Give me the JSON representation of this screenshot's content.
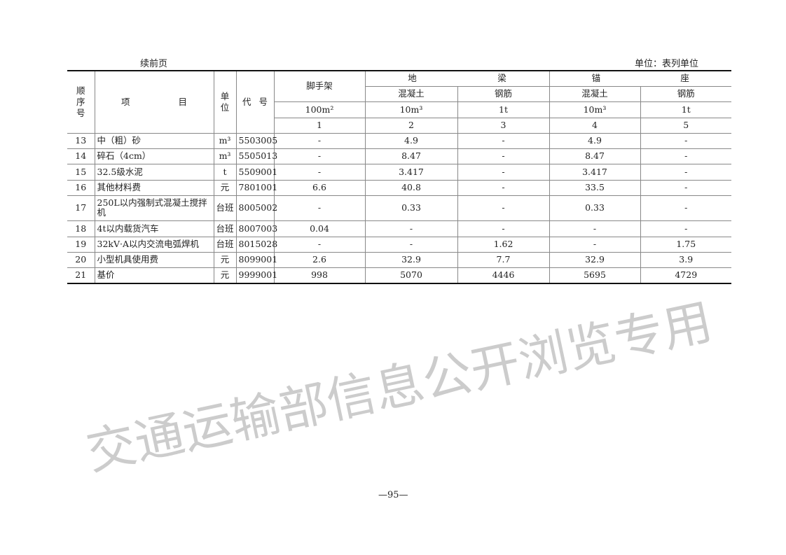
{
  "header": {
    "continued": "续前页",
    "unit_note": "单位：表列单位"
  },
  "columns": {
    "seq": "顺序号",
    "item_left": "项",
    "item_right": "目",
    "unit": "单位",
    "code_left": "代",
    "code_right": "号",
    "scaffold": "脚手架",
    "ground_beam_left": "地",
    "ground_beam_right": "梁",
    "anchor_left": "锚",
    "anchor_right": "座",
    "concrete": "混凝土",
    "rebar": "钢筋",
    "units": [
      "100m²",
      "10m³",
      "1t",
      "10m³",
      "1t"
    ],
    "numbers": [
      "1",
      "2",
      "3",
      "4",
      "5"
    ]
  },
  "rows": [
    {
      "seq": "13",
      "item": "中（粗）砂",
      "unit": "m³",
      "code": "5503005",
      "v": [
        "-",
        "4.9",
        "-",
        "4.9",
        "-"
      ]
    },
    {
      "seq": "14",
      "item": "碎石（4cm）",
      "unit": "m³",
      "code": "5505013",
      "v": [
        "-",
        "8.47",
        "-",
        "8.47",
        "-"
      ]
    },
    {
      "seq": "15",
      "item": "32.5级水泥",
      "unit": "t",
      "code": "5509001",
      "v": [
        "-",
        "3.417",
        "-",
        "3.417",
        "-"
      ]
    },
    {
      "seq": "16",
      "item": "其他材料费",
      "unit": "元",
      "code": "7801001",
      "v": [
        "6.6",
        "40.8",
        "-",
        "33.5",
        "-"
      ]
    },
    {
      "seq": "17",
      "item": "250L以内强制式混凝土搅拌机",
      "unit": "台班",
      "code": "8005002",
      "v": [
        "-",
        "0.33",
        "-",
        "0.33",
        "-"
      ]
    },
    {
      "seq": "18",
      "item": "4t以内载货汽车",
      "unit": "台班",
      "code": "8007003",
      "v": [
        "0.04",
        "-",
        "-",
        "-",
        "-"
      ]
    },
    {
      "seq": "19",
      "item": "32kV·A以内交流电弧焊机",
      "unit": "台班",
      "code": "8015028",
      "v": [
        "-",
        "-",
        "1.62",
        "-",
        "1.75"
      ]
    },
    {
      "seq": "20",
      "item": "小型机具使用费",
      "unit": "元",
      "code": "8099001",
      "v": [
        "2.6",
        "32.9",
        "7.7",
        "32.9",
        "3.9"
      ]
    },
    {
      "seq": "21",
      "item": "基价",
      "unit": "元",
      "code": "9999001",
      "v": [
        "998",
        "5070",
        "4446",
        "5695",
        "4729"
      ]
    }
  ],
  "footer": {
    "page_number": "—95—"
  },
  "watermark": "交通运输部信息公开浏览专用"
}
